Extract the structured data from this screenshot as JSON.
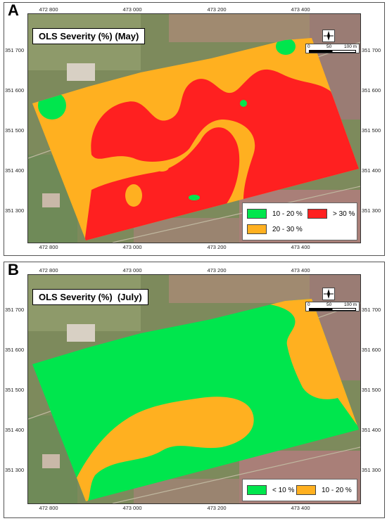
{
  "panels": [
    {
      "letter": "A",
      "title": "OLS Severity (%) (May)",
      "x_ticks": [
        "472 800",
        "473 000",
        "473 200",
        "473 400"
      ],
      "y_ticks": [
        "351 700",
        "351 600",
        "351 500",
        "351 400",
        "351 300"
      ],
      "legend": [
        {
          "label": "10 - 20 %",
          "color": "#00e64d"
        },
        {
          "label": "> 30 %",
          "color": "#ff2020"
        },
        {
          "label": "20 - 30 %",
          "color": "#ffb020"
        }
      ],
      "scale": {
        "labels": [
          "0",
          "50",
          "100 m"
        ]
      },
      "north_icon": "north-arrow-icon"
    },
    {
      "letter": "B",
      "title": "OLS Severity (%)  (July)",
      "x_ticks": [
        "472 800",
        "473 000",
        "473 200",
        "473 400"
      ],
      "y_ticks": [
        "351 700",
        "351 600",
        "351 500",
        "351 400",
        "351 300"
      ],
      "legend": [
        {
          "label": "< 10 %",
          "color": "#00e64d"
        },
        {
          "label": "10 - 20 %",
          "color": "#ffb020"
        }
      ],
      "scale": {
        "labels": [
          "0",
          "50",
          "100 m"
        ]
      },
      "north_icon": "north-arrow-icon"
    }
  ]
}
